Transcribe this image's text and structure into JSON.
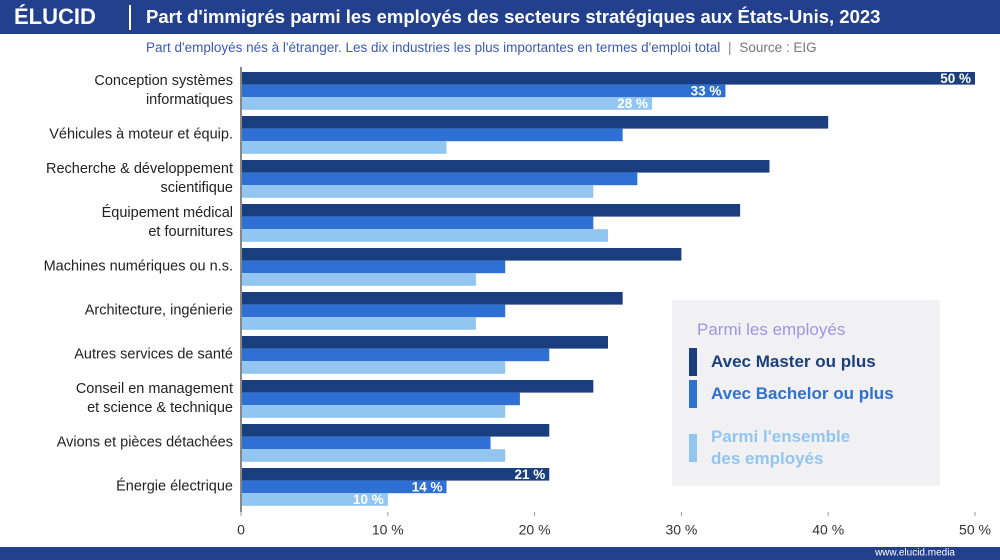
{
  "brand": "ÉLUCID",
  "website": "www.elucid.media",
  "chart_data": {
    "type": "hbar",
    "title": "Part d'immigrés parmi les employés des secteurs stratégiques aux États-Unis, 2023",
    "subtitle": "Part d'employés nés à l'étranger. Les dix industries les plus importantes en termes d'emploi total",
    "source": "Source : EIG",
    "legend_title": "Parmi les employés",
    "categories": [
      "Conception systèmes\ninformatiques",
      "Véhicules à moteur et équip.",
      "Recherche & développement\nscientifique",
      "Équipement médical\net fournitures",
      "Machines numériques ou n.s.",
      "Architecture, ingénierie",
      "Autres services de santé",
      "Conseil en management\net science & technique",
      "Avions et pièces détachées",
      "Énergie électrique"
    ],
    "series": [
      {
        "name": "Avec Master ou plus",
        "color": "#1b3f7e",
        "values": [
          50,
          40,
          36,
          34,
          30,
          26,
          25,
          24,
          21,
          21
        ],
        "value_labels": [
          "50 %",
          null,
          null,
          null,
          null,
          null,
          null,
          null,
          null,
          "21 %"
        ]
      },
      {
        "name": "Avec Bachelor ou plus",
        "color": "#2f70d4",
        "values": [
          33,
          26,
          27,
          24,
          18,
          18,
          21,
          19,
          17,
          14
        ],
        "value_labels": [
          "33 %",
          null,
          null,
          null,
          null,
          null,
          null,
          null,
          null,
          "14 %"
        ]
      },
      {
        "name": "Parmi l'ensemble\ndes employés",
        "color": "#92c5f0",
        "values": [
          28,
          14,
          24,
          25,
          16,
          16,
          18,
          18,
          18,
          10
        ],
        "value_labels": [
          "28 %",
          null,
          null,
          null,
          null,
          null,
          null,
          null,
          null,
          "10 %"
        ]
      }
    ],
    "xlim": [
      0,
      50
    ],
    "xticks": [
      0,
      {
        "value": 10,
        "label": "10 %"
      },
      {
        "value": 20,
        "label": "20 %"
      },
      {
        "value": 30,
        "label": "30 %"
      },
      {
        "value": 40,
        "label": "40 %"
      },
      {
        "value": 50,
        "label": "50 %"
      }
    ],
    "grid": false
  }
}
